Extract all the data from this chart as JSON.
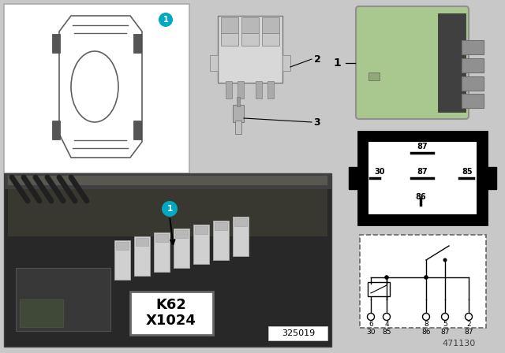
{
  "bg_color": "#c8c8c8",
  "white": "#ffffff",
  "black": "#000000",
  "relay_green": "#a8c890",
  "doc_number": "471130",
  "ref_number": "325019",
  "k62_label_line1": "K62",
  "k62_label_line2": "X1024",
  "teal": "#00a8c0",
  "photo_bg": "#303030",
  "photo_mid": "#484838",
  "relay_box_fc": "#181818",
  "car_box_bg": "#ffffff",
  "socket_bg": "#e0e0e0",
  "socket_ec": "#888888",
  "pin_top": [
    "6",
    "4",
    "8",
    "5",
    "2"
  ],
  "pin_bottom": [
    "30",
    "85",
    "86",
    "87",
    "87"
  ],
  "socket_labels": [
    "87",
    "30",
    "87",
    "85",
    "86"
  ]
}
